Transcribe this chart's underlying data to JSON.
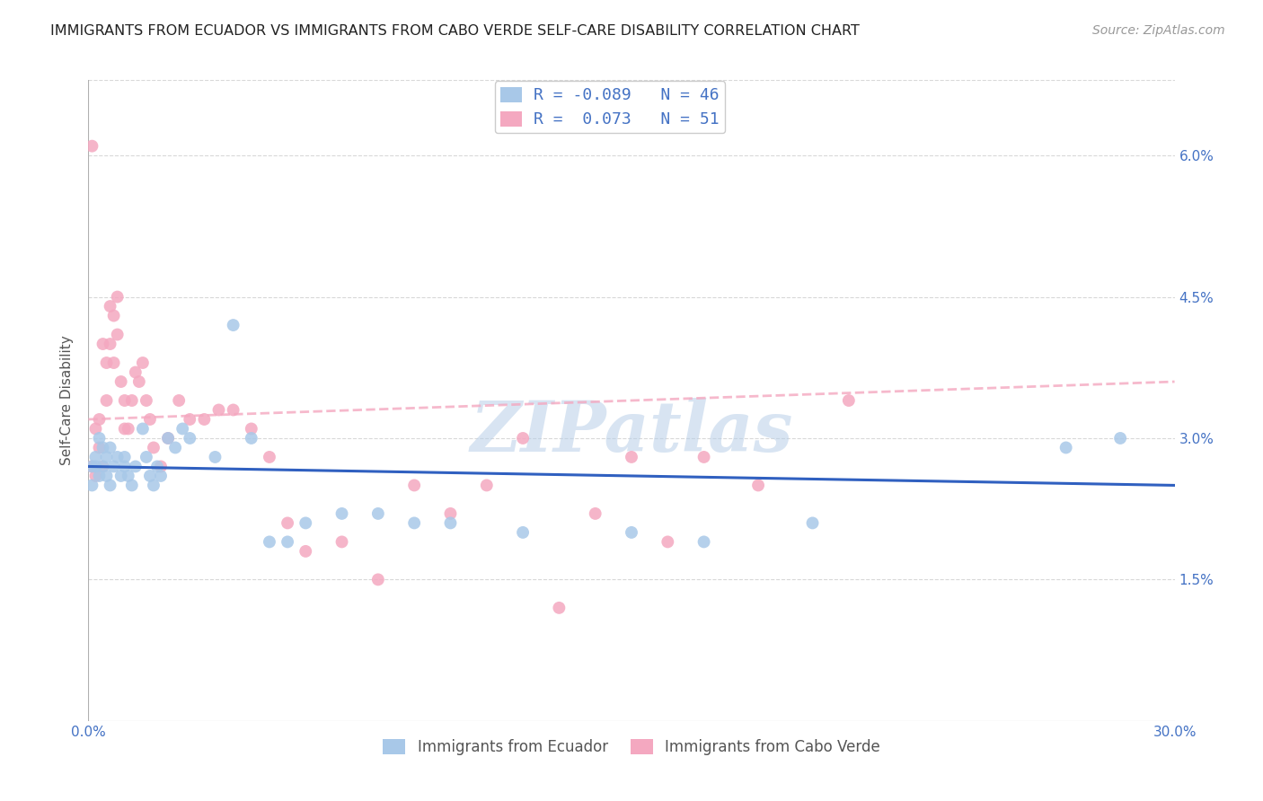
{
  "title": "IMMIGRANTS FROM ECUADOR VS IMMIGRANTS FROM CABO VERDE SELF-CARE DISABILITY CORRELATION CHART",
  "source": "Source: ZipAtlas.com",
  "ylabel": "Self-Care Disability",
  "yticks": [
    "1.5%",
    "3.0%",
    "4.5%",
    "6.0%"
  ],
  "ytick_vals": [
    0.015,
    0.03,
    0.045,
    0.06
  ],
  "ecuador_color": "#a8c8e8",
  "caboverde_color": "#f4a8c0",
  "ecuador_line_color": "#3060c0",
  "caboverde_line_color": "#d06080",
  "xlim": [
    0.0,
    0.3
  ],
  "ylim": [
    0.0,
    0.068
  ],
  "ecuador_x": [
    0.001,
    0.001,
    0.002,
    0.002,
    0.003,
    0.003,
    0.004,
    0.004,
    0.005,
    0.005,
    0.006,
    0.006,
    0.007,
    0.008,
    0.009,
    0.01,
    0.01,
    0.011,
    0.012,
    0.013,
    0.015,
    0.016,
    0.017,
    0.018,
    0.019,
    0.02,
    0.022,
    0.024,
    0.026,
    0.028,
    0.035,
    0.04,
    0.045,
    0.05,
    0.055,
    0.06,
    0.07,
    0.08,
    0.09,
    0.1,
    0.12,
    0.15,
    0.17,
    0.2,
    0.27,
    0.285
  ],
  "ecuador_y": [
    0.027,
    0.025,
    0.028,
    0.027,
    0.03,
    0.026,
    0.029,
    0.027,
    0.028,
    0.026,
    0.029,
    0.025,
    0.027,
    0.028,
    0.026,
    0.028,
    0.027,
    0.026,
    0.025,
    0.027,
    0.031,
    0.028,
    0.026,
    0.025,
    0.027,
    0.026,
    0.03,
    0.029,
    0.031,
    0.03,
    0.028,
    0.042,
    0.03,
    0.019,
    0.019,
    0.021,
    0.022,
    0.022,
    0.021,
    0.021,
    0.02,
    0.02,
    0.019,
    0.021,
    0.029,
    0.03
  ],
  "caboverde_x": [
    0.001,
    0.001,
    0.002,
    0.002,
    0.003,
    0.003,
    0.004,
    0.004,
    0.005,
    0.005,
    0.006,
    0.006,
    0.007,
    0.007,
    0.008,
    0.008,
    0.009,
    0.01,
    0.01,
    0.011,
    0.012,
    0.013,
    0.014,
    0.015,
    0.016,
    0.017,
    0.018,
    0.02,
    0.022,
    0.025,
    0.028,
    0.032,
    0.036,
    0.04,
    0.045,
    0.05,
    0.055,
    0.06,
    0.07,
    0.08,
    0.09,
    0.1,
    0.11,
    0.12,
    0.13,
    0.14,
    0.15,
    0.16,
    0.17,
    0.185,
    0.21
  ],
  "caboverde_y": [
    0.061,
    0.027,
    0.031,
    0.026,
    0.032,
    0.029,
    0.04,
    0.027,
    0.038,
    0.034,
    0.044,
    0.04,
    0.043,
    0.038,
    0.045,
    0.041,
    0.036,
    0.034,
    0.031,
    0.031,
    0.034,
    0.037,
    0.036,
    0.038,
    0.034,
    0.032,
    0.029,
    0.027,
    0.03,
    0.034,
    0.032,
    0.032,
    0.033,
    0.033,
    0.031,
    0.028,
    0.021,
    0.018,
    0.019,
    0.015,
    0.025,
    0.022,
    0.025,
    0.03,
    0.012,
    0.022,
    0.028,
    0.019,
    0.028,
    0.025,
    0.034
  ],
  "watermark": "ZIPatlas",
  "background_color": "#ffffff",
  "grid_color": "#d8d8d8"
}
